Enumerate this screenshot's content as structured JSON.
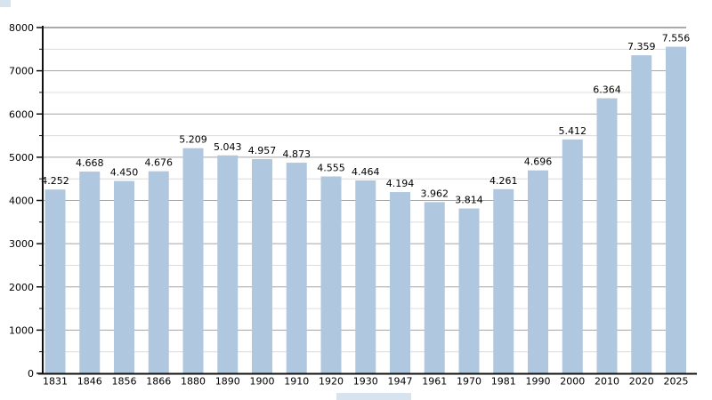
{
  "chart_data": {
    "type": "bar",
    "title": "",
    "xlabel": "",
    "ylabel": "",
    "categories": [
      "1831",
      "1846",
      "1856",
      "1866",
      "1880",
      "1890",
      "1900",
      "1910",
      "1920",
      "1930",
      "1947",
      "1961",
      "1970",
      "1981",
      "1990",
      "2000",
      "2010",
      "2020",
      "2025"
    ],
    "values": [
      4252,
      4668,
      4450,
      4676,
      5209,
      5043,
      4957,
      4873,
      4555,
      4464,
      4194,
      3962,
      3814,
      4261,
      4696,
      5412,
      6364,
      7359,
      7556
    ],
    "value_labels": [
      "4.252",
      "4.668",
      "4.450",
      "4.676",
      "5.209",
      "5.043",
      "4.957",
      "4.873",
      "4.555",
      "4.464",
      "4.194",
      "3.962",
      "3.814",
      "4.261",
      "4.696",
      "5.412",
      "6.364",
      "7.359",
      "7.556"
    ],
    "ylim": [
      0,
      8000
    ],
    "y_major_step": 1000,
    "y_minor_step": 500,
    "y_tick_labels": [
      "0",
      "1000",
      "2000",
      "3000",
      "4000",
      "5000",
      "6000",
      "7000",
      "8000"
    ],
    "grid": true,
    "legend": "none"
  },
  "colors": {
    "background": "#ffffff",
    "bar_fill": "#b0c7e0",
    "major_grid": "#a4a4a4",
    "minor_grid": "#dcdcdc",
    "top_grid": "#555555",
    "axis": "#111111",
    "text": "#000000",
    "artifact_blue": "#b0c7e0"
  }
}
